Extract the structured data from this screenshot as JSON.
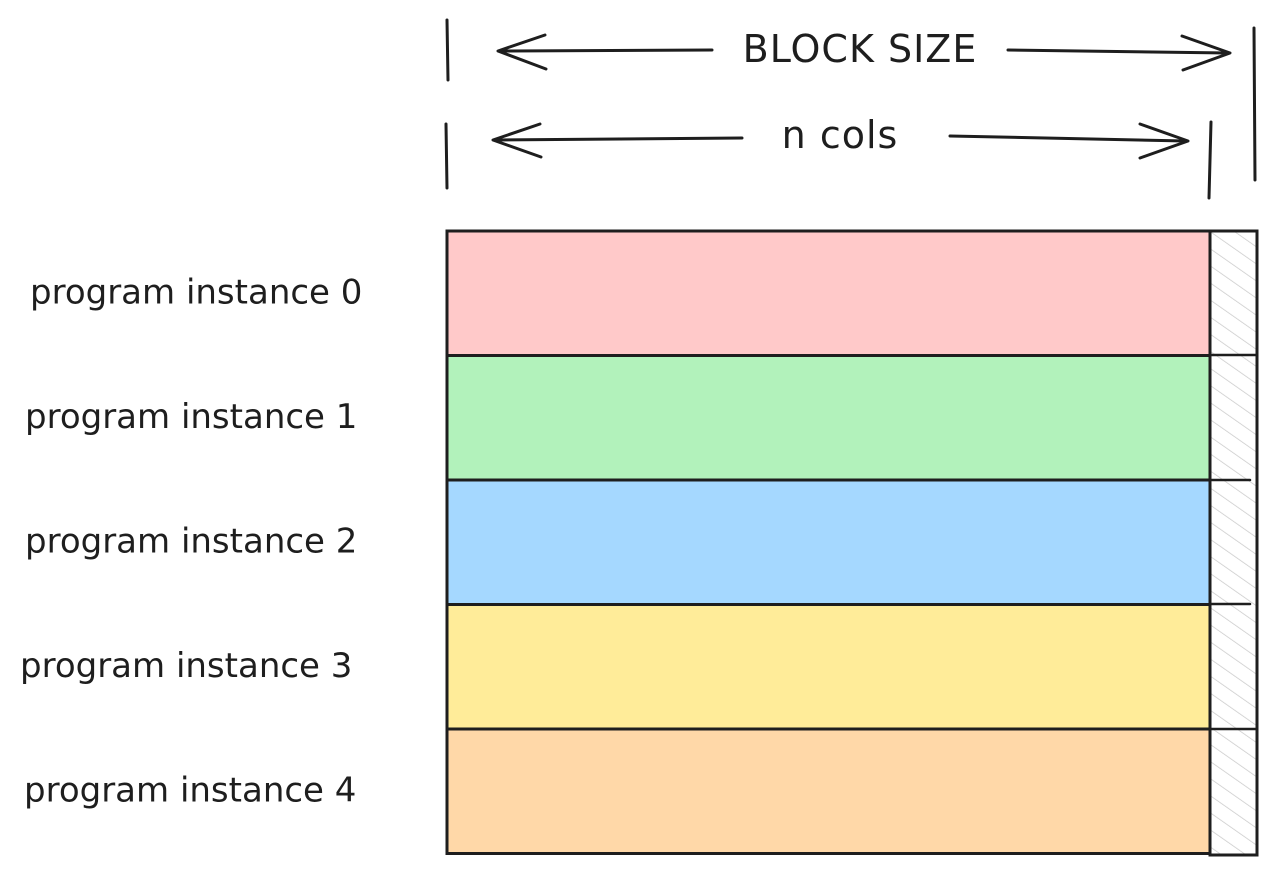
{
  "diagram": {
    "block_size_label": "BLOCK SIZE",
    "n_cols_label": "n cols",
    "rows": [
      {
        "label": "program instance 0",
        "color": "#ffc9c9"
      },
      {
        "label": "program instance 1",
        "color": "#b2f2bb"
      },
      {
        "label": "program instance 2",
        "color": "#a5d8ff"
      },
      {
        "label": "program instance 3",
        "color": "#ffec99"
      },
      {
        "label": "program instance 4",
        "color": "#ffd8a8"
      }
    ],
    "padding_fill": "hatched"
  }
}
